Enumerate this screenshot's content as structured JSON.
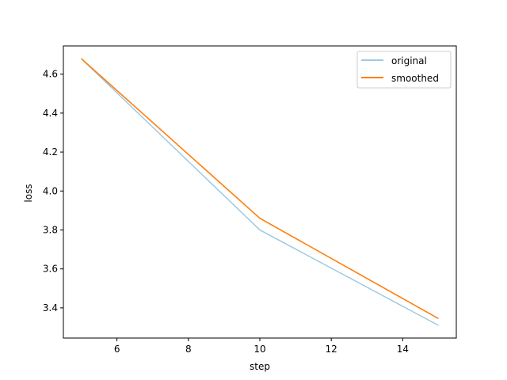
{
  "chart_data": {
    "type": "line",
    "title": "",
    "xlabel": "step",
    "ylabel": "loss",
    "xlim": [
      4.5,
      15.5
    ],
    "ylim": [
      3.245,
      4.745
    ],
    "xticks": [
      6,
      8,
      10,
      12,
      14
    ],
    "yticks": [
      3.4,
      3.6,
      3.8,
      4.0,
      4.2,
      4.4,
      4.6
    ],
    "xtick_labels": [
      "6",
      "8",
      "10",
      "12",
      "14"
    ],
    "ytick_labels": [
      "3.4",
      "3.6",
      "3.8",
      "4.0",
      "4.2",
      "4.4",
      "4.6"
    ],
    "grid": false,
    "legend_position": "top-right",
    "series": [
      {
        "name": "original",
        "color": "#9ecae1",
        "x": [
          5,
          10,
          15
        ],
        "y": [
          4.68,
          3.8,
          3.31
        ]
      },
      {
        "name": "smoothed",
        "color": "#ff7f0e",
        "x": [
          5,
          10,
          15
        ],
        "y": [
          4.68,
          3.86,
          3.345
        ]
      }
    ]
  }
}
